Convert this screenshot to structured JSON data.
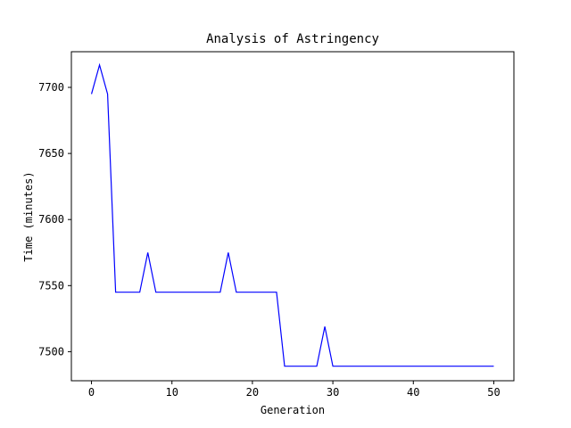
{
  "chart_data": {
    "type": "line",
    "title": "Analysis of Astringency",
    "xlabel": "Generation",
    "ylabel": "Time (minutes)",
    "xlim": [
      -2.5,
      52.5
    ],
    "ylim": [
      7478,
      7727
    ],
    "xticks": [
      0,
      10,
      20,
      30,
      40,
      50
    ],
    "yticks": [
      7500,
      7550,
      7600,
      7650,
      7700
    ],
    "xtick_labels": [
      "0",
      "10",
      "20",
      "30",
      "40",
      "50"
    ],
    "ytick_labels": [
      "7500",
      "7550",
      "7600",
      "7650",
      "7700"
    ],
    "grid": false,
    "legend": false,
    "series": [
      {
        "color": "#0000ff",
        "x": [
          0,
          1,
          2,
          3,
          4,
          5,
          6,
          7,
          8,
          9,
          10,
          11,
          12,
          13,
          14,
          15,
          16,
          17,
          18,
          19,
          20,
          21,
          22,
          23,
          24,
          25,
          26,
          27,
          28,
          29,
          30,
          31,
          32,
          33,
          34,
          35,
          36,
          37,
          38,
          39,
          40,
          41,
          42,
          43,
          44,
          45,
          46,
          47,
          48,
          49,
          50
        ],
        "y": [
          7695,
          7717,
          7695,
          7545,
          7545,
          7545,
          7545,
          7575,
          7545,
          7545,
          7545,
          7545,
          7545,
          7545,
          7545,
          7545,
          7545,
          7575,
          7545,
          7545,
          7545,
          7545,
          7545,
          7545,
          7489,
          7489,
          7489,
          7489,
          7489,
          7519,
          7489,
          7489,
          7489,
          7489,
          7489,
          7489,
          7489,
          7489,
          7489,
          7489,
          7489,
          7489,
          7489,
          7489,
          7489,
          7489,
          7489,
          7489,
          7489,
          7489,
          7489
        ]
      }
    ]
  }
}
